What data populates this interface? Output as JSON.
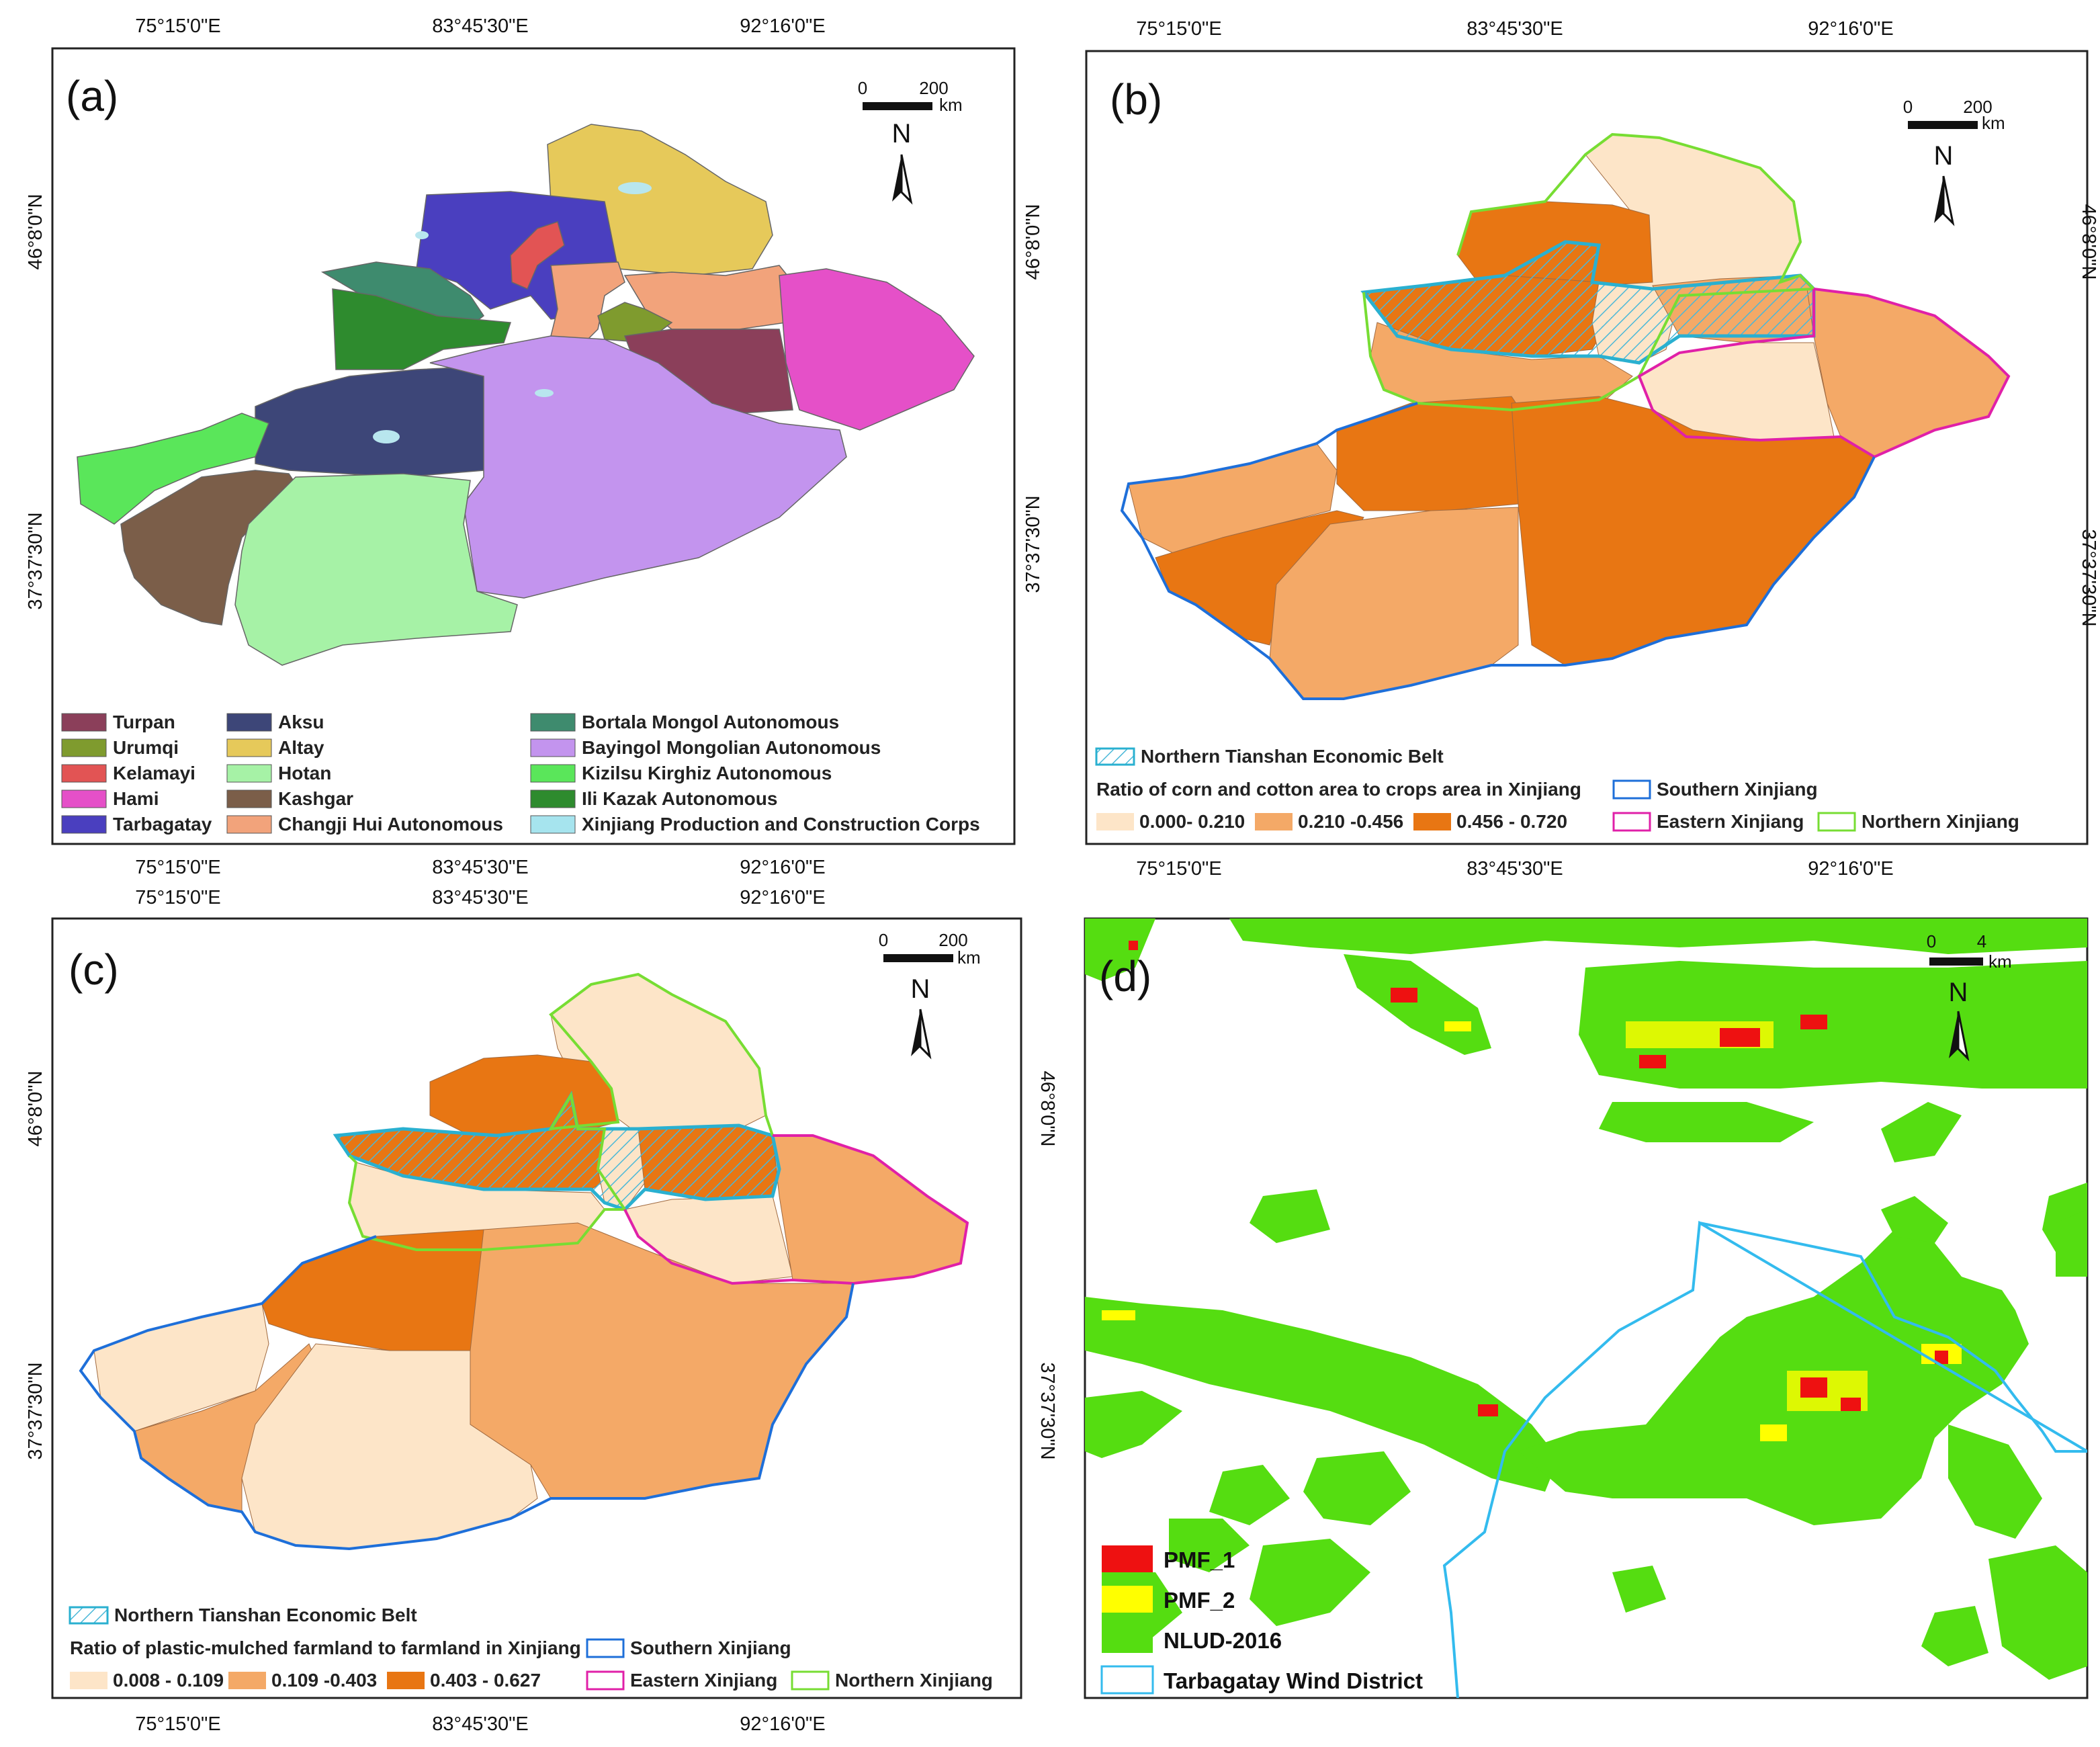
{
  "coords": {
    "lon": [
      "75°15'0\"E",
      "83°45'30\"E",
      "92°16'0\"E"
    ],
    "lat": [
      "46°8'0\"N",
      "37°37'30\"N"
    ]
  },
  "panels": {
    "a": {
      "label": "(a)",
      "scale": {
        "zero": "0",
        "value": "200",
        "unit": "km"
      },
      "north": "N",
      "legend": [
        {
          "name": "Turpan",
          "color": "#8b3f5a"
        },
        {
          "name": "Urumqi",
          "color": "#7f9b2e"
        },
        {
          "name": "Kelamayi",
          "color": "#e25454"
        },
        {
          "name": "Hami",
          "color": "#e550c8"
        },
        {
          "name": "Tarbagatay",
          "color": "#4a3fbf"
        },
        {
          "name": "Aksu",
          "color": "#3d4678"
        },
        {
          "name": "Altay",
          "color": "#e6c95a"
        },
        {
          "name": "Hotan",
          "color": "#a6f2a6"
        },
        {
          "name": "Kashgar",
          "color": "#7b5e49"
        },
        {
          "name": "Changji Hui Autonomous",
          "color": "#f2a37b"
        },
        {
          "name": "Bortala Mongol Autonomous",
          "color": "#3e8b6e"
        },
        {
          "name": "Bayingol Mongolian Autonomous",
          "color": "#c394ee"
        },
        {
          "name": "Kizilsu Kirghiz Autonomous",
          "color": "#5ae65a"
        },
        {
          "name": "Ili Kazak Autonomous",
          "color": "#2e8b2e"
        },
        {
          "name": "Xinjiang Production and Construction Corps",
          "color": "#a6e4ee"
        }
      ]
    },
    "b": {
      "label": "(b)",
      "scale": {
        "zero": "0",
        "value": "200",
        "unit": "km"
      },
      "north": "N",
      "belt": "Northern Tianshan Economic Belt",
      "ratio_title": "Ratio of corn and cotton area to crops area in Xinjiang",
      "classes": [
        {
          "range": "0.000- 0.210",
          "color": "#fde5c8"
        },
        {
          "range": "0.210 -0.456",
          "color": "#f4a967"
        },
        {
          "range": "0.456 - 0.720",
          "color": "#e87613"
        }
      ],
      "regions": [
        {
          "name": "Southern Xinjiang",
          "color": "#1e6fd9"
        },
        {
          "name": "Eastern Xinjiang",
          "color": "#e020a8"
        },
        {
          "name": "Northern Xinjiang",
          "color": "#77dd33"
        }
      ]
    },
    "c": {
      "label": "(c)",
      "scale": {
        "zero": "0",
        "value": "200",
        "unit": "km"
      },
      "north": "N",
      "belt": "Northern Tianshan Economic Belt",
      "ratio_title": "Ratio of plastic-mulched farmland to farmland in Xinjiang",
      "classes": [
        {
          "range": "0.008 - 0.109",
          "color": "#fde5c8"
        },
        {
          "range": "0.109 -0.403",
          "color": "#f4a967"
        },
        {
          "range": "0.403 - 0.627",
          "color": "#e87613"
        }
      ],
      "regions": [
        {
          "name": "Southern Xinjiang",
          "color": "#1e6fd9"
        },
        {
          "name": "Eastern Xinjiang",
          "color": "#e020a8"
        },
        {
          "name": "Northern Xinjiang",
          "color": "#77dd33"
        }
      ]
    },
    "d": {
      "label": "(d)",
      "scale": {
        "zero": "0",
        "value": "4",
        "unit": "km"
      },
      "north": "N",
      "legend": [
        {
          "name": "PMF_1",
          "color": "#ee1111"
        },
        {
          "name": "PMF_2",
          "color": "#ffff00"
        },
        {
          "name": "NLUD-2016",
          "color": "#55dd11"
        },
        {
          "name": "Tarbagatay Wind District",
          "color": "#33bbee"
        }
      ]
    }
  }
}
